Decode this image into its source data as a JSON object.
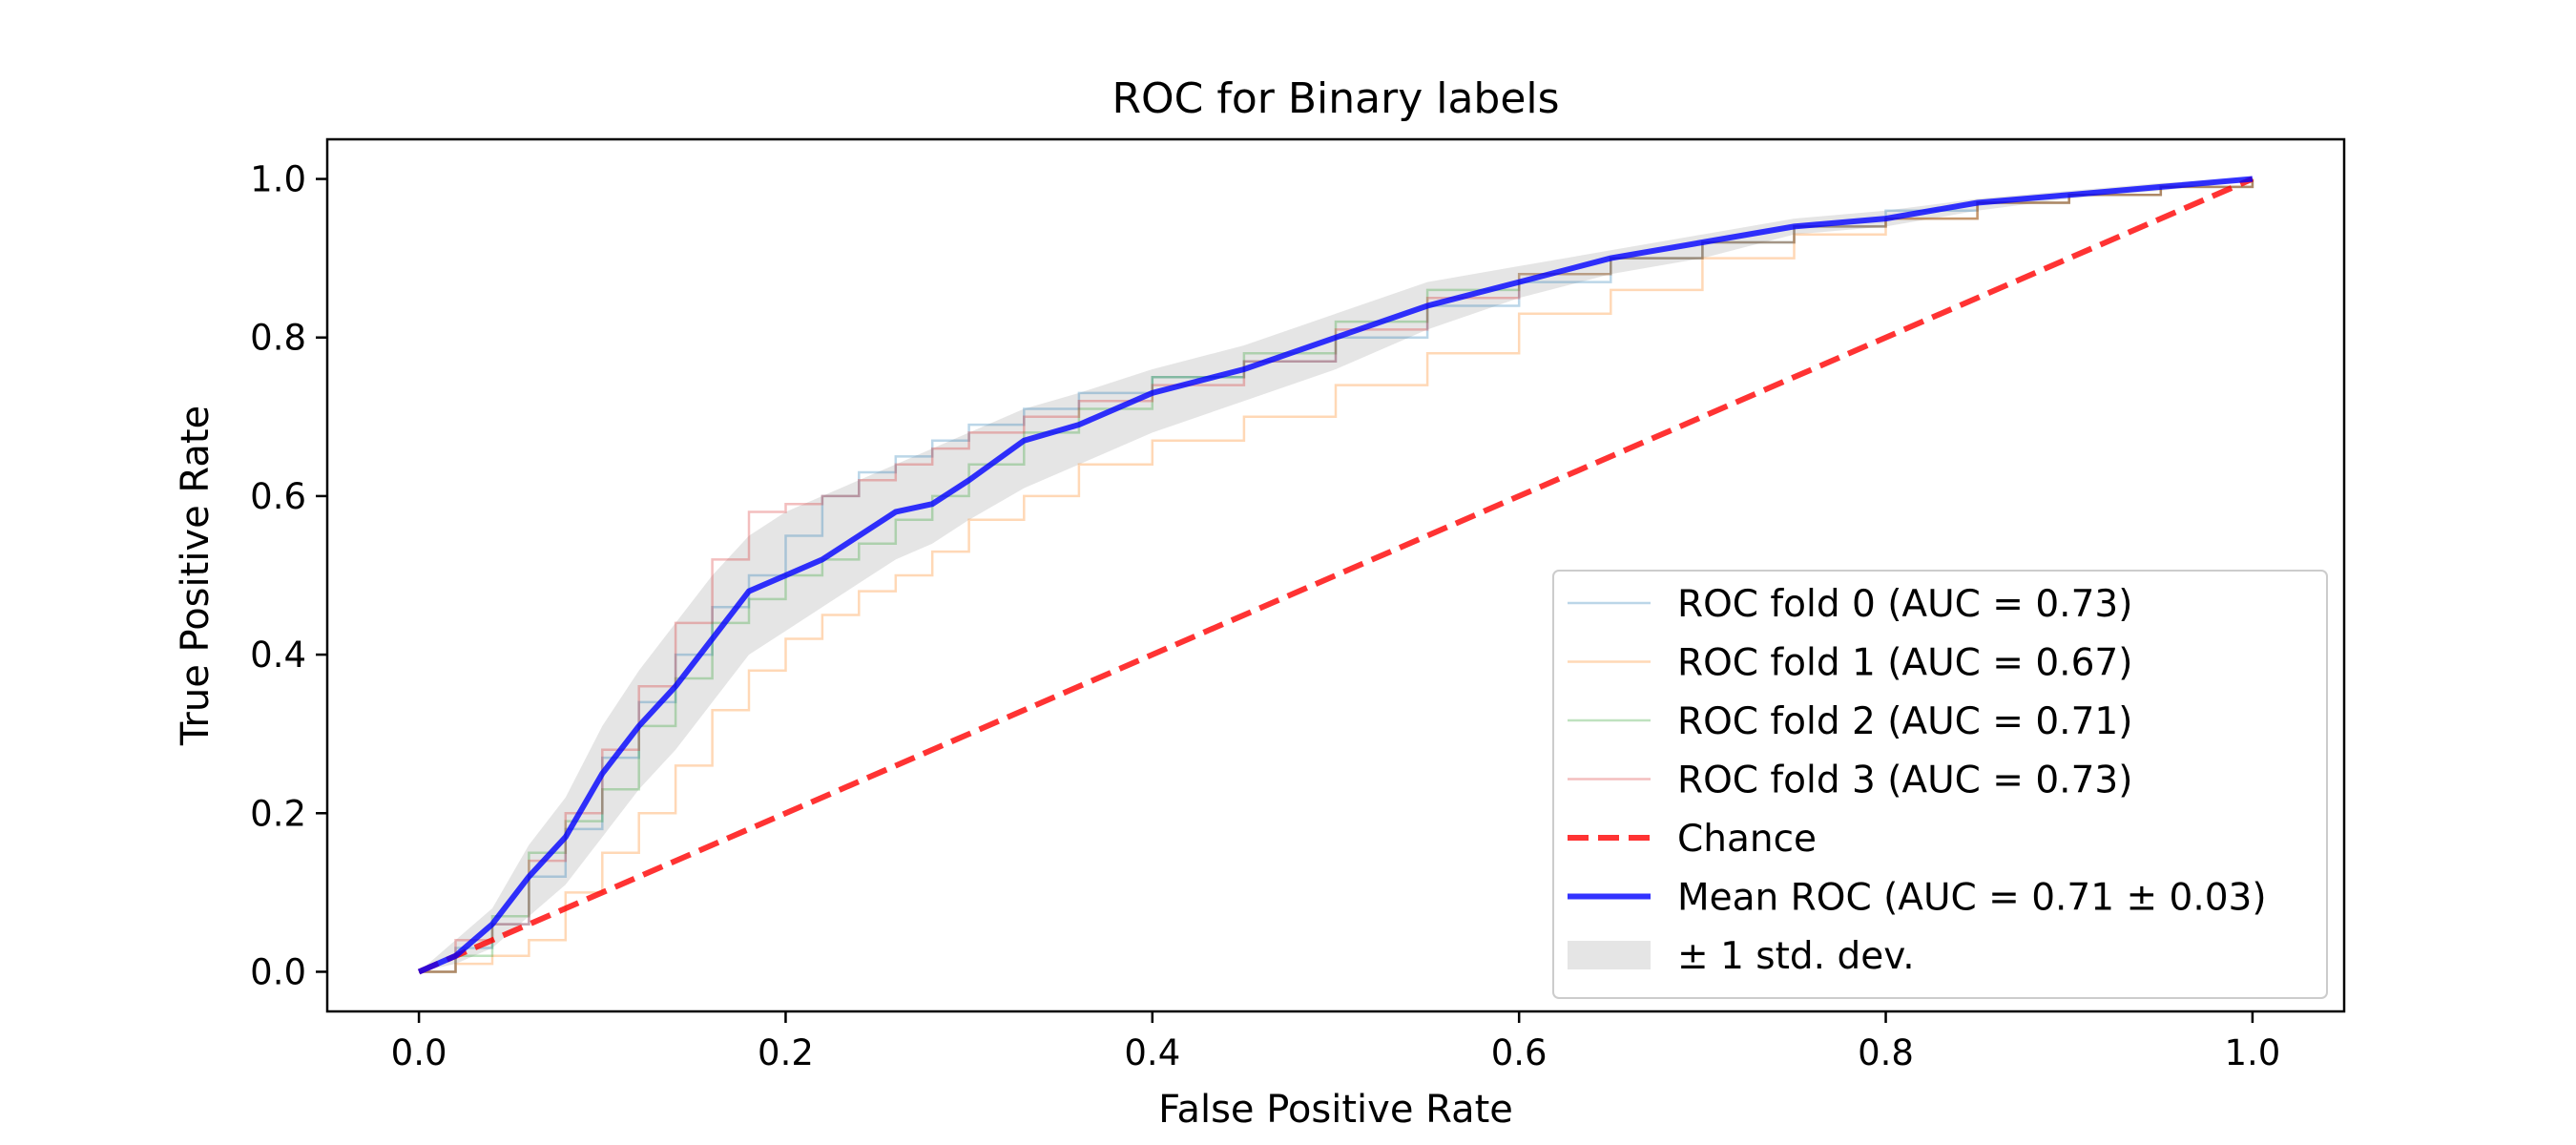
{
  "chart_data": {
    "type": "line",
    "title": "ROC for Binary labels",
    "xlabel": "False Positive Rate",
    "ylabel": "True Positive Rate",
    "xlim": [
      -0.05,
      1.05
    ],
    "ylim": [
      -0.05,
      1.05
    ],
    "xticks": [
      "0.0",
      "0.2",
      "0.4",
      "0.6",
      "0.8",
      "1.0"
    ],
    "yticks": [
      "0.0",
      "0.2",
      "0.4",
      "0.6",
      "0.8",
      "1.0"
    ],
    "grid": false,
    "legend_position": "lower-right",
    "series": [
      {
        "name": "ROC fold 0 (AUC = 0.73)",
        "color": "#1f77b4",
        "style": "step",
        "x": [
          0,
          0.02,
          0.04,
          0.06,
          0.08,
          0.1,
          0.12,
          0.14,
          0.16,
          0.18,
          0.2,
          0.22,
          0.24,
          0.26,
          0.28,
          0.3,
          0.33,
          0.36,
          0.4,
          0.45,
          0.5,
          0.55,
          0.6,
          0.65,
          0.7,
          0.75,
          0.8,
          0.85,
          0.9,
          0.95,
          1.0
        ],
        "y": [
          0,
          0.03,
          0.06,
          0.12,
          0.18,
          0.27,
          0.34,
          0.4,
          0.46,
          0.5,
          0.55,
          0.6,
          0.63,
          0.65,
          0.67,
          0.69,
          0.71,
          0.73,
          0.75,
          0.77,
          0.8,
          0.84,
          0.87,
          0.9,
          0.92,
          0.94,
          0.96,
          0.97,
          0.98,
          0.99,
          1.0
        ]
      },
      {
        "name": "ROC fold 1 (AUC = 0.67)",
        "color": "#ff7f0e",
        "style": "step",
        "x": [
          0,
          0.02,
          0.04,
          0.06,
          0.08,
          0.1,
          0.12,
          0.14,
          0.16,
          0.18,
          0.2,
          0.22,
          0.24,
          0.26,
          0.28,
          0.3,
          0.33,
          0.36,
          0.4,
          0.45,
          0.5,
          0.55,
          0.6,
          0.65,
          0.7,
          0.75,
          0.8,
          0.85,
          0.9,
          0.95,
          1.0
        ],
        "y": [
          0,
          0.01,
          0.02,
          0.04,
          0.1,
          0.15,
          0.2,
          0.26,
          0.33,
          0.38,
          0.42,
          0.45,
          0.48,
          0.5,
          0.53,
          0.57,
          0.6,
          0.64,
          0.67,
          0.7,
          0.74,
          0.78,
          0.83,
          0.86,
          0.9,
          0.93,
          0.95,
          0.97,
          0.98,
          0.99,
          1.0
        ]
      },
      {
        "name": "ROC fold 2 (AUC = 0.71)",
        "color": "#2ca02c",
        "style": "step",
        "x": [
          0,
          0.02,
          0.04,
          0.06,
          0.08,
          0.1,
          0.12,
          0.14,
          0.16,
          0.18,
          0.2,
          0.22,
          0.24,
          0.26,
          0.28,
          0.3,
          0.33,
          0.36,
          0.4,
          0.45,
          0.5,
          0.55,
          0.6,
          0.65,
          0.7,
          0.75,
          0.8,
          0.85,
          0.9,
          0.95,
          1.0
        ],
        "y": [
          0,
          0.02,
          0.07,
          0.15,
          0.19,
          0.23,
          0.31,
          0.37,
          0.44,
          0.47,
          0.5,
          0.52,
          0.54,
          0.57,
          0.6,
          0.64,
          0.68,
          0.71,
          0.75,
          0.78,
          0.82,
          0.86,
          0.88,
          0.9,
          0.92,
          0.94,
          0.95,
          0.97,
          0.98,
          0.99,
          1.0
        ]
      },
      {
        "name": "ROC fold 3 (AUC = 0.73)",
        "color": "#d62728",
        "style": "step",
        "x": [
          0,
          0.02,
          0.04,
          0.06,
          0.08,
          0.1,
          0.12,
          0.14,
          0.16,
          0.18,
          0.2,
          0.22,
          0.24,
          0.26,
          0.28,
          0.3,
          0.33,
          0.36,
          0.4,
          0.45,
          0.5,
          0.55,
          0.6,
          0.65,
          0.7,
          0.75,
          0.8,
          0.85,
          0.9,
          0.95,
          1.0
        ],
        "y": [
          0,
          0.04,
          0.06,
          0.14,
          0.2,
          0.28,
          0.36,
          0.44,
          0.52,
          0.58,
          0.59,
          0.6,
          0.62,
          0.64,
          0.66,
          0.68,
          0.7,
          0.72,
          0.74,
          0.77,
          0.81,
          0.85,
          0.88,
          0.9,
          0.92,
          0.94,
          0.95,
          0.97,
          0.98,
          0.99,
          1.0
        ]
      },
      {
        "name": "Chance",
        "color": "#ff0000",
        "style": "dashed",
        "x": [
          0,
          1
        ],
        "y": [
          0,
          1
        ]
      },
      {
        "name": "Mean ROC (AUC = 0.71 ± 0.03)",
        "color": "#0000ff",
        "style": "solid-thick",
        "x": [
          0,
          0.02,
          0.04,
          0.06,
          0.08,
          0.1,
          0.12,
          0.14,
          0.16,
          0.18,
          0.2,
          0.22,
          0.24,
          0.26,
          0.28,
          0.3,
          0.33,
          0.36,
          0.4,
          0.45,
          0.5,
          0.55,
          0.6,
          0.65,
          0.7,
          0.75,
          0.8,
          0.85,
          0.9,
          0.95,
          1.0
        ],
        "y": [
          0,
          0.02,
          0.06,
          0.12,
          0.17,
          0.25,
          0.31,
          0.36,
          0.42,
          0.48,
          0.5,
          0.52,
          0.55,
          0.58,
          0.59,
          0.62,
          0.67,
          0.69,
          0.73,
          0.76,
          0.8,
          0.84,
          0.87,
          0.9,
          0.92,
          0.94,
          0.95,
          0.97,
          0.98,
          0.99,
          1.0
        ]
      }
    ],
    "std_band": {
      "name": "± 1 std. dev.",
      "color": "#bfbfbf",
      "x": [
        0,
        0.02,
        0.04,
        0.06,
        0.08,
        0.1,
        0.12,
        0.14,
        0.16,
        0.18,
        0.2,
        0.22,
        0.24,
        0.26,
        0.28,
        0.3,
        0.33,
        0.36,
        0.4,
        0.45,
        0.5,
        0.55,
        0.6,
        0.65,
        0.7,
        0.75,
        0.8,
        0.85,
        0.9,
        0.95,
        1.0
      ],
      "lower": [
        0,
        0.01,
        0.03,
        0.07,
        0.11,
        0.17,
        0.23,
        0.28,
        0.34,
        0.4,
        0.43,
        0.46,
        0.49,
        0.52,
        0.54,
        0.57,
        0.61,
        0.64,
        0.68,
        0.72,
        0.76,
        0.81,
        0.85,
        0.88,
        0.9,
        0.93,
        0.94,
        0.96,
        0.975,
        0.985,
        1.0
      ],
      "upper": [
        0,
        0.04,
        0.08,
        0.16,
        0.22,
        0.31,
        0.38,
        0.44,
        0.5,
        0.55,
        0.58,
        0.6,
        0.62,
        0.64,
        0.66,
        0.68,
        0.71,
        0.73,
        0.76,
        0.79,
        0.83,
        0.87,
        0.89,
        0.91,
        0.93,
        0.95,
        0.96,
        0.975,
        0.985,
        0.995,
        1.0
      ]
    }
  }
}
